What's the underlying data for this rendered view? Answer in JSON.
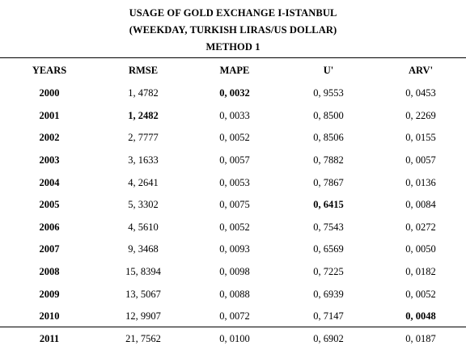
{
  "title_lines": [
    "USAGE OF GOLD EXCHANGE I-ISTANBUL",
    "(WEEKDAY, TURKISH LIRAS/US DOLLAR)",
    "METHOD 1"
  ],
  "columns": [
    "YEARS",
    "RMSE",
    "MAPE",
    "U'",
    "ARV'"
  ],
  "rows": [
    {
      "year": "2000",
      "rmse": "1, 4782",
      "mape": "0, 0032",
      "u": "0, 9553",
      "arv": "0, 0453"
    },
    {
      "year": "2001",
      "rmse": "1, 2482",
      "mape": "0, 0033",
      "u": "0, 8500",
      "arv": "0, 2269"
    },
    {
      "year": "2002",
      "rmse": "2, 7777",
      "mape": "0, 0052",
      "u": "0, 8506",
      "arv": "0, 0155"
    },
    {
      "year": "2003",
      "rmse": "3, 1633",
      "mape": "0, 0057",
      "u": "0, 7882",
      "arv": "0, 0057"
    },
    {
      "year": "2004",
      "rmse": "4, 2641",
      "mape": "0, 0053",
      "u": "0, 7867",
      "arv": "0, 0136"
    },
    {
      "year": "2005",
      "rmse": "5, 3302",
      "mape": "0, 0075",
      "u": "0, 6415",
      "arv": "0, 0084"
    },
    {
      "year": "2006",
      "rmse": "4, 5610",
      "mape": "0, 0052",
      "u": "0, 7543",
      "arv": "0, 0272"
    },
    {
      "year": "2007",
      "rmse": "9, 3468",
      "mape": "0, 0093",
      "u": "0, 6569",
      "arv": "0, 0050"
    },
    {
      "year": "2008",
      "rmse": "15, 8394",
      "mape": "0, 0098",
      "u": "0, 7225",
      "arv": "0, 0182"
    },
    {
      "year": "2009",
      "rmse": "13, 5067",
      "mape": "0, 0088",
      "u": "0, 6939",
      "arv": "0, 0052"
    },
    {
      "year": "2010",
      "rmse": "12, 9907",
      "mape": "0, 0072",
      "u": "0, 7147",
      "arv": "0, 0048"
    },
    {
      "year": "2011",
      "rmse": "21, 7562",
      "mape": "0, 0100",
      "u": "0, 6902",
      "arv": "0, 0187"
    }
  ]
}
